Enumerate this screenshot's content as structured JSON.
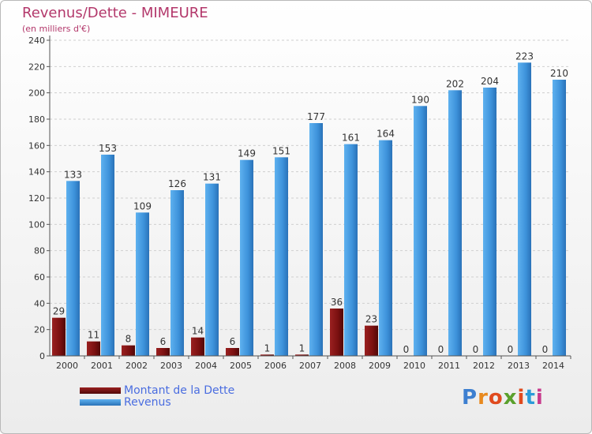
{
  "header": {
    "title": "Revenus/Dette - MIMEURE",
    "subtitle": "(en milliers d'€)"
  },
  "legend": {
    "items": [
      {
        "label": "Montant de la Dette",
        "color": "#7a1010"
      },
      {
        "label": "Revenus",
        "color": "#3d8fd8"
      }
    ]
  },
  "logo": {
    "text": "Proxiti"
  },
  "chart_data": {
    "type": "bar",
    "title": "Revenus/Dette - MIMEURE",
    "subtitle": "(en milliers d'€)",
    "categories": [
      "2000",
      "2001",
      "2002",
      "2003",
      "2004",
      "2005",
      "2006",
      "2007",
      "2008",
      "2009",
      "2010",
      "2011",
      "2012",
      "2013",
      "2014"
    ],
    "series": [
      {
        "name": "Montant de la Dette",
        "color": "#7a1010",
        "values": [
          29,
          11,
          8,
          6,
          14,
          6,
          1,
          1,
          36,
          23,
          0,
          0,
          0,
          0,
          0
        ]
      },
      {
        "name": "Revenus",
        "color": "#3d8fd8",
        "values": [
          133,
          153,
          109,
          126,
          131,
          149,
          151,
          177,
          161,
          164,
          190,
          202,
          204,
          223,
          210
        ]
      }
    ],
    "ylim": [
      0,
      240
    ],
    "yticks": [
      0,
      20,
      40,
      60,
      80,
      100,
      120,
      140,
      160,
      180,
      200,
      220,
      240
    ],
    "grid": true,
    "legend_position": "bottom-left"
  }
}
